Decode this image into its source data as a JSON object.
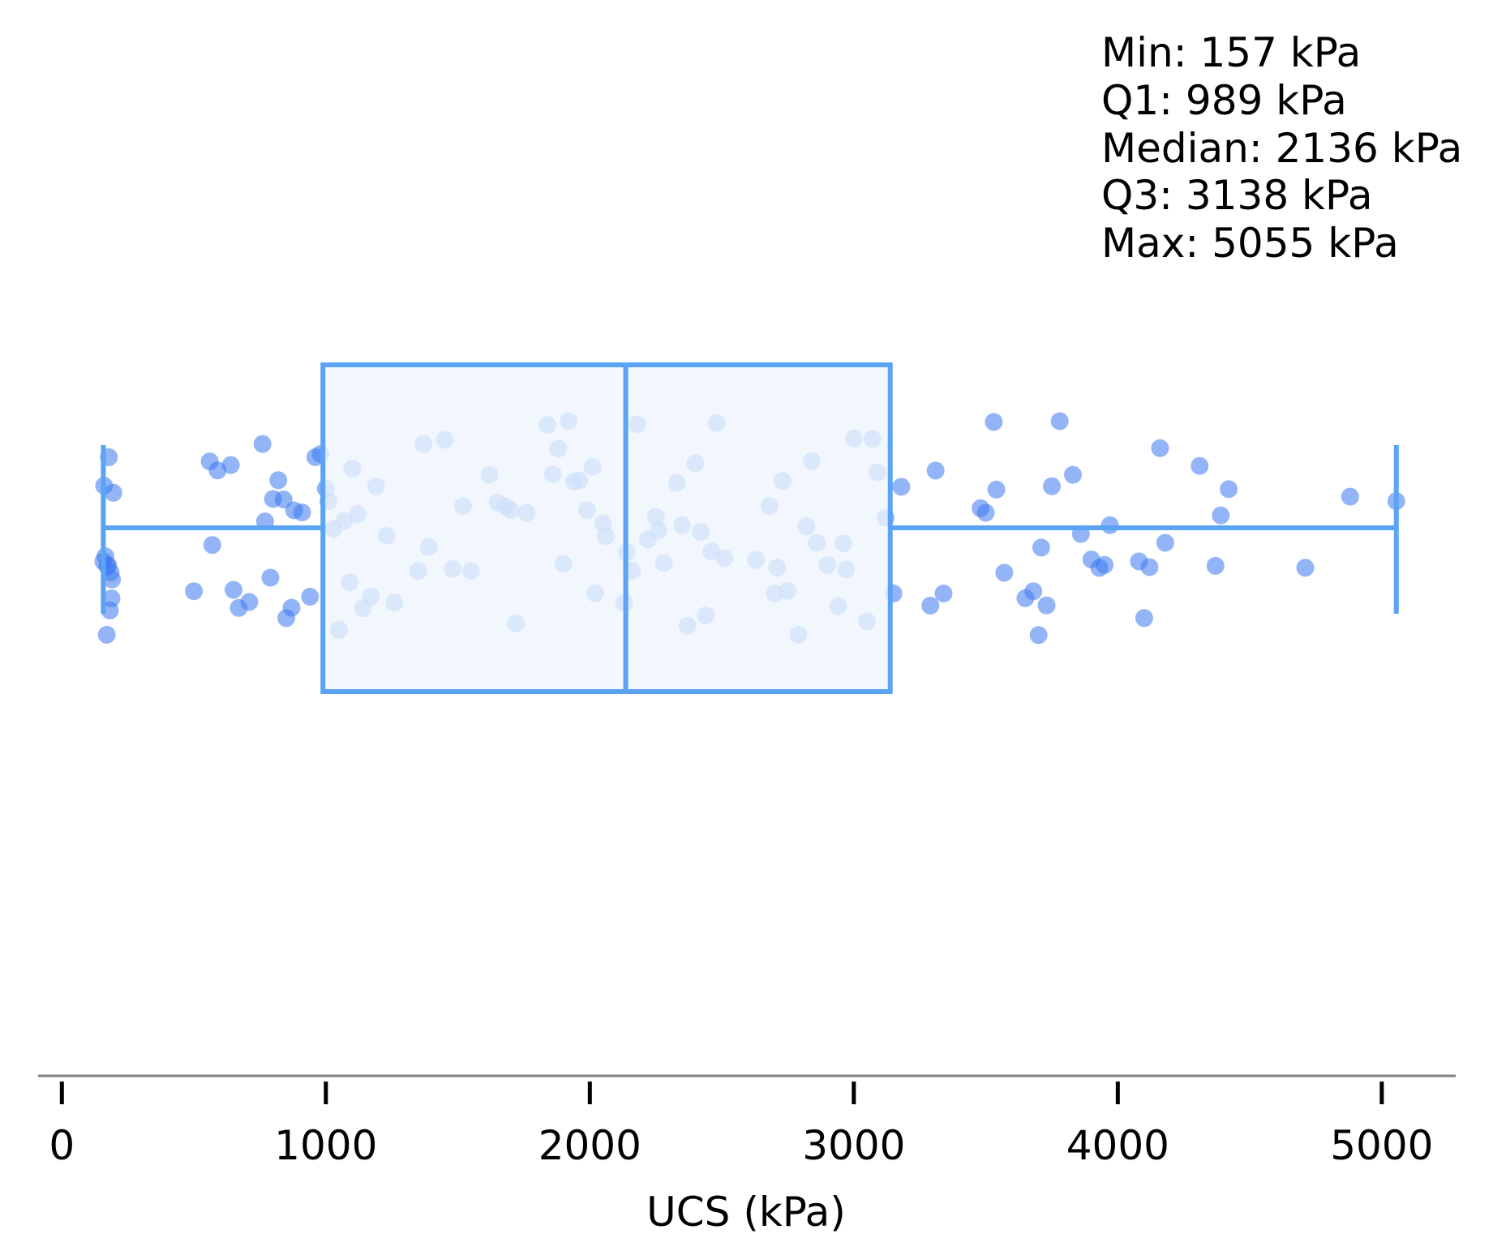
{
  "chart_data": {
    "type": "box",
    "orientation": "horizontal",
    "xlabel": "UCS (kPa)",
    "xlim": [
      -90,
      5280
    ],
    "xticks": [
      0,
      1000,
      2000,
      3000,
      4000,
      5000
    ],
    "xtick_labels": [
      "0",
      "1000",
      "2000",
      "3000",
      "4000",
      "5000"
    ],
    "box": {
      "min": 157,
      "q1": 989,
      "median": 2136,
      "q3": 3138,
      "max": 5055
    },
    "stats_labels": [
      "Min: 157 kPa",
      "Q1: 989 kPa",
      "Median: 2136 kPa",
      "Q3: 3138 kPa",
      "Max: 5055 kPa"
    ],
    "points": [
      157,
      160,
      165,
      170,
      172,
      175,
      178,
      182,
      185,
      188,
      190,
      195,
      500,
      560,
      570,
      590,
      640,
      650,
      670,
      710,
      760,
      770,
      790,
      800,
      820,
      840,
      850,
      870,
      880,
      910,
      940,
      960,
      980,
      1000,
      1010,
      1030,
      1050,
      1070,
      1090,
      1100,
      1120,
      1140,
      1170,
      1190,
      1230,
      1260,
      1350,
      1370,
      1390,
      1450,
      1480,
      1520,
      1550,
      1620,
      1650,
      1680,
      1700,
      1720,
      1760,
      1840,
      1860,
      1880,
      1900,
      1920,
      1940,
      1960,
      1990,
      2010,
      2020,
      2050,
      2060,
      2130,
      2140,
      2160,
      2180,
      2220,
      2250,
      2260,
      2280,
      2330,
      2350,
      2370,
      2400,
      2420,
      2440,
      2460,
      2480,
      2510,
      2630,
      2680,
      2700,
      2710,
      2730,
      2750,
      2790,
      2820,
      2840,
      2860,
      2900,
      2940,
      2960,
      2970,
      3000,
      3050,
      3070,
      3090,
      3120,
      3150,
      3180,
      3290,
      3310,
      3340,
      3480,
      3500,
      3530,
      3540,
      3570,
      3650,
      3680,
      3700,
      3710,
      3730,
      3750,
      3780,
      3830,
      3860,
      3900,
      3930,
      3950,
      3970,
      4080,
      4100,
      4120,
      4160,
      4180,
      4310,
      4370,
      4390,
      4420,
      4710,
      4880,
      5055
    ],
    "point_color": "#3b78f0",
    "box_color": "#5ba3f5",
    "box_fill": "#eef5fd",
    "grid": false
  }
}
